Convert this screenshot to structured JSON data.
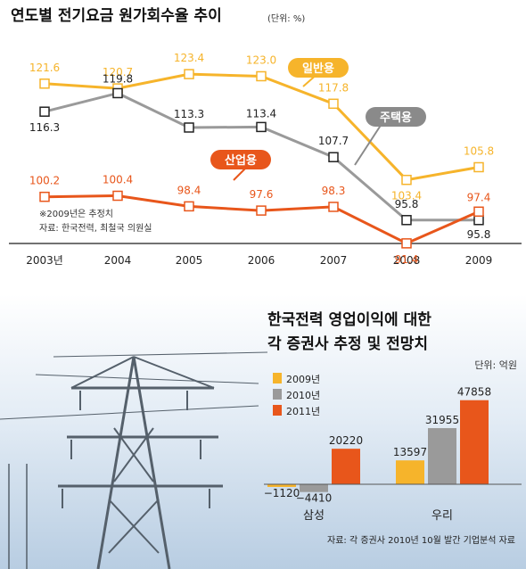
{
  "top": {
    "title": "연도별 전기요금 원가회수율 추이",
    "unit": "(단위: %)",
    "notes": [
      "※2009년은 추정치",
      "자료: 한국전력, 최철국 의원실"
    ]
  },
  "bottom": {
    "title_lines": [
      "한국전력 영업이익에 대한",
      "각 증권사 추정 및 전망치"
    ],
    "unit": "단위: 억원",
    "source": "자료: 각 증권사 2010년 10월 발간 기업분석 자료"
  },
  "colors": {
    "general": "#f6b42b",
    "residential": "#9a9a9a",
    "industrial": "#e8561b",
    "axis": "#444444"
  },
  "chart_data": [
    {
      "type": "line",
      "title": "연도별 전기요금 원가회수율 추이",
      "unit": "%",
      "x": [
        "2003년",
        "2004",
        "2005",
        "2006",
        "2007",
        "2008",
        "2009"
      ],
      "series": [
        {
          "name": "일반용",
          "values": [
            121.6,
            120.7,
            123.4,
            123.0,
            117.8,
            103.4,
            105.8
          ]
        },
        {
          "name": "주택용",
          "values": [
            116.3,
            119.8,
            113.3,
            113.4,
            107.7,
            95.8,
            95.8
          ]
        },
        {
          "name": "산업용",
          "values": [
            100.2,
            100.4,
            98.4,
            97.6,
            98.3,
            91.4,
            97.4
          ]
        }
      ],
      "value_labels": [
        [
          "121.6",
          "120.7",
          "123.4",
          "123.0",
          "117.8",
          "103.4",
          "105.8"
        ],
        [
          "116.3",
          "119.8",
          "113.3",
          "113.4",
          "107.7",
          "95.8",
          "95.8"
        ],
        [
          "100.2",
          "100.4",
          "98.4",
          "97.6",
          "98.3",
          "91.4",
          "97.4"
        ]
      ]
    },
    {
      "type": "bar",
      "title": "한국전력 영업이익에 대한 각 증권사 추정 및 전망치",
      "unit": "억원",
      "categories": [
        "삼성",
        "우리"
      ],
      "series": [
        {
          "name": "2009년",
          "values": [
            -1120,
            13597
          ]
        },
        {
          "name": "2010년",
          "values": [
            -4410,
            31955
          ]
        },
        {
          "name": "2011년",
          "values": [
            20220,
            47858
          ]
        }
      ],
      "value_labels": [
        [
          "−1120",
          "13597"
        ],
        [
          "−4410",
          "31955"
        ],
        [
          "20220",
          "47858"
        ]
      ]
    }
  ]
}
